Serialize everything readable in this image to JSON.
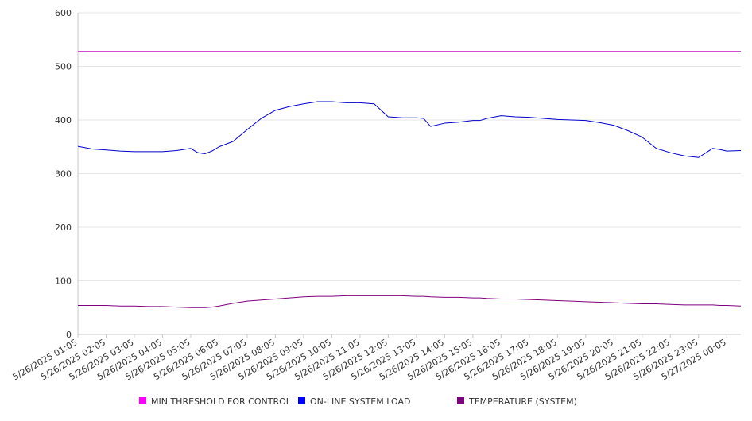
{
  "chart_data": {
    "type": "line",
    "xlabel": "",
    "ylabel": "",
    "ylim": [
      0,
      600
    ],
    "yticks": [
      0,
      100,
      200,
      300,
      400,
      500,
      600
    ],
    "grid": "horizontal",
    "legend_position": "bottom",
    "x_tick_labels": [
      "5/26/2025 01:05",
      "5/26/2025 02:05",
      "5/26/2025 03:05",
      "5/26/2025 04:05",
      "5/26/2025 05:05",
      "5/26/2025 06:05",
      "5/26/2025 07:05",
      "5/26/2025 08:05",
      "5/26/2025 09:05",
      "5/26/2025 10:05",
      "5/26/2025 11:05",
      "5/26/2025 12:05",
      "5/26/2025 13:05",
      "5/26/2025 14:05",
      "5/26/2025 15:05",
      "5/26/2025 16:05",
      "5/26/2025 17:05",
      "5/26/2025 18:05",
      "5/26/2025 19:05",
      "5/26/2025 20:05",
      "5/26/2025 21:05",
      "5/26/2025 22:05",
      "5/26/2025 23:05",
      "5/27/2025 00:05"
    ],
    "x": [
      "5/26/2025 01:05",
      "5/26/2025 01:35",
      "5/26/2025 02:05",
      "5/26/2025 02:35",
      "5/26/2025 03:05",
      "5/26/2025 03:35",
      "5/26/2025 04:05",
      "5/26/2025 04:35",
      "5/26/2025 05:05",
      "5/26/2025 05:20",
      "5/26/2025 05:35",
      "5/26/2025 05:50",
      "5/26/2025 06:05",
      "5/26/2025 06:35",
      "5/26/2025 07:05",
      "5/26/2025 07:35",
      "5/26/2025 08:05",
      "5/26/2025 08:35",
      "5/26/2025 09:05",
      "5/26/2025 09:35",
      "5/26/2025 10:05",
      "5/26/2025 10:35",
      "5/26/2025 11:05",
      "5/26/2025 11:35",
      "5/26/2025 12:05",
      "5/26/2025 12:35",
      "5/26/2025 13:05",
      "5/26/2025 13:20",
      "5/26/2025 13:35",
      "5/26/2025 14:05",
      "5/26/2025 14:35",
      "5/26/2025 15:05",
      "5/26/2025 15:20",
      "5/26/2025 15:35",
      "5/26/2025 16:05",
      "5/26/2025 16:35",
      "5/26/2025 17:05",
      "5/26/2025 17:35",
      "5/26/2025 18:05",
      "5/26/2025 18:35",
      "5/26/2025 19:05",
      "5/26/2025 19:35",
      "5/26/2025 20:05",
      "5/26/2025 20:35",
      "5/26/2025 21:05",
      "5/26/2025 21:35",
      "5/26/2025 22:05",
      "5/26/2025 22:35",
      "5/26/2025 23:05",
      "5/26/2025 23:35",
      "5/26/2025 23:50",
      "5/27/2025 00:05",
      "5/27/2025 00:35"
    ],
    "series": [
      {
        "name": "MIN THRESHOLD FOR CONTROL",
        "color": "#cc33cc",
        "legend_color": "#ff00ff",
        "values": [
          528,
          528,
          528,
          528,
          528,
          528,
          528,
          528,
          528,
          528,
          528,
          528,
          528,
          528,
          528,
          528,
          528,
          528,
          528,
          528,
          528,
          528,
          528,
          528,
          528,
          528,
          528,
          528,
          528,
          528,
          528,
          528,
          528,
          528,
          528,
          528,
          528,
          528,
          528,
          528,
          528,
          528,
          528,
          528,
          528,
          528,
          528,
          528,
          528,
          528,
          528,
          528,
          528
        ]
      },
      {
        "name": "ON-LINE SYSTEM LOAD",
        "color": "#0000cc",
        "legend_color": "#0000ff",
        "values": [
          351,
          346,
          344,
          342,
          341,
          341,
          341,
          343,
          347,
          339,
          337,
          342,
          350,
          360,
          382,
          403,
          418,
          425,
          430,
          434,
          434,
          432,
          432,
          430,
          406,
          404,
          404,
          403,
          388,
          394,
          396,
          399,
          399,
          403,
          408,
          406,
          405,
          403,
          401,
          400,
          399,
          395,
          390,
          380,
          368,
          347,
          339,
          333,
          330,
          347,
          345,
          342,
          343
        ]
      },
      {
        "name": "TEMPERATURE (SYSTEM)",
        "color": "#800080",
        "legend_color": "#800080",
        "values": [
          54,
          54,
          54,
          53,
          53,
          52,
          52,
          51,
          50,
          50,
          50,
          51,
          53,
          58,
          62,
          64,
          66,
          68,
          70,
          71,
          71,
          72,
          72,
          72,
          72,
          72,
          71,
          71,
          70,
          69,
          69,
          68,
          68,
          67,
          66,
          66,
          65,
          64,
          63,
          62,
          61,
          60,
          59,
          58,
          57,
          57,
          56,
          55,
          55,
          55,
          54,
          54,
          53
        ]
      }
    ]
  }
}
